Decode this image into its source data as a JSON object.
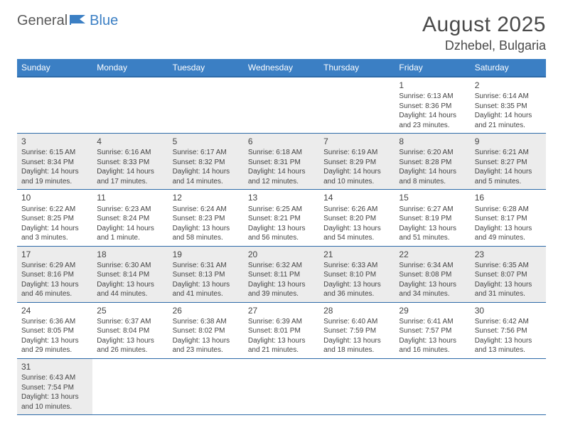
{
  "logo": {
    "part1": "General",
    "part2": "Blue"
  },
  "title": "August 2025",
  "location": "Dzhebel, Bulgaria",
  "header_bg": "#3b7fc4",
  "header_border": "#2d6aa8",
  "alt_row_bg": "#ececec",
  "text_color": "#444444",
  "dayHeaders": [
    "Sunday",
    "Monday",
    "Tuesday",
    "Wednesday",
    "Thursday",
    "Friday",
    "Saturday"
  ],
  "weeks": [
    [
      null,
      null,
      null,
      null,
      null,
      {
        "n": "1",
        "sr": "Sunrise: 6:13 AM",
        "ss": "Sunset: 8:36 PM",
        "dl1": "Daylight: 14 hours",
        "dl2": "and 23 minutes."
      },
      {
        "n": "2",
        "sr": "Sunrise: 6:14 AM",
        "ss": "Sunset: 8:35 PM",
        "dl1": "Daylight: 14 hours",
        "dl2": "and 21 minutes."
      }
    ],
    [
      {
        "n": "3",
        "sr": "Sunrise: 6:15 AM",
        "ss": "Sunset: 8:34 PM",
        "dl1": "Daylight: 14 hours",
        "dl2": "and 19 minutes."
      },
      {
        "n": "4",
        "sr": "Sunrise: 6:16 AM",
        "ss": "Sunset: 8:33 PM",
        "dl1": "Daylight: 14 hours",
        "dl2": "and 17 minutes."
      },
      {
        "n": "5",
        "sr": "Sunrise: 6:17 AM",
        "ss": "Sunset: 8:32 PM",
        "dl1": "Daylight: 14 hours",
        "dl2": "and 14 minutes."
      },
      {
        "n": "6",
        "sr": "Sunrise: 6:18 AM",
        "ss": "Sunset: 8:31 PM",
        "dl1": "Daylight: 14 hours",
        "dl2": "and 12 minutes."
      },
      {
        "n": "7",
        "sr": "Sunrise: 6:19 AM",
        "ss": "Sunset: 8:29 PM",
        "dl1": "Daylight: 14 hours",
        "dl2": "and 10 minutes."
      },
      {
        "n": "8",
        "sr": "Sunrise: 6:20 AM",
        "ss": "Sunset: 8:28 PM",
        "dl1": "Daylight: 14 hours",
        "dl2": "and 8 minutes."
      },
      {
        "n": "9",
        "sr": "Sunrise: 6:21 AM",
        "ss": "Sunset: 8:27 PM",
        "dl1": "Daylight: 14 hours",
        "dl2": "and 5 minutes."
      }
    ],
    [
      {
        "n": "10",
        "sr": "Sunrise: 6:22 AM",
        "ss": "Sunset: 8:25 PM",
        "dl1": "Daylight: 14 hours",
        "dl2": "and 3 minutes."
      },
      {
        "n": "11",
        "sr": "Sunrise: 6:23 AM",
        "ss": "Sunset: 8:24 PM",
        "dl1": "Daylight: 14 hours",
        "dl2": "and 1 minute."
      },
      {
        "n": "12",
        "sr": "Sunrise: 6:24 AM",
        "ss": "Sunset: 8:23 PM",
        "dl1": "Daylight: 13 hours",
        "dl2": "and 58 minutes."
      },
      {
        "n": "13",
        "sr": "Sunrise: 6:25 AM",
        "ss": "Sunset: 8:21 PM",
        "dl1": "Daylight: 13 hours",
        "dl2": "and 56 minutes."
      },
      {
        "n": "14",
        "sr": "Sunrise: 6:26 AM",
        "ss": "Sunset: 8:20 PM",
        "dl1": "Daylight: 13 hours",
        "dl2": "and 54 minutes."
      },
      {
        "n": "15",
        "sr": "Sunrise: 6:27 AM",
        "ss": "Sunset: 8:19 PM",
        "dl1": "Daylight: 13 hours",
        "dl2": "and 51 minutes."
      },
      {
        "n": "16",
        "sr": "Sunrise: 6:28 AM",
        "ss": "Sunset: 8:17 PM",
        "dl1": "Daylight: 13 hours",
        "dl2": "and 49 minutes."
      }
    ],
    [
      {
        "n": "17",
        "sr": "Sunrise: 6:29 AM",
        "ss": "Sunset: 8:16 PM",
        "dl1": "Daylight: 13 hours",
        "dl2": "and 46 minutes."
      },
      {
        "n": "18",
        "sr": "Sunrise: 6:30 AM",
        "ss": "Sunset: 8:14 PM",
        "dl1": "Daylight: 13 hours",
        "dl2": "and 44 minutes."
      },
      {
        "n": "19",
        "sr": "Sunrise: 6:31 AM",
        "ss": "Sunset: 8:13 PM",
        "dl1": "Daylight: 13 hours",
        "dl2": "and 41 minutes."
      },
      {
        "n": "20",
        "sr": "Sunrise: 6:32 AM",
        "ss": "Sunset: 8:11 PM",
        "dl1": "Daylight: 13 hours",
        "dl2": "and 39 minutes."
      },
      {
        "n": "21",
        "sr": "Sunrise: 6:33 AM",
        "ss": "Sunset: 8:10 PM",
        "dl1": "Daylight: 13 hours",
        "dl2": "and 36 minutes."
      },
      {
        "n": "22",
        "sr": "Sunrise: 6:34 AM",
        "ss": "Sunset: 8:08 PM",
        "dl1": "Daylight: 13 hours",
        "dl2": "and 34 minutes."
      },
      {
        "n": "23",
        "sr": "Sunrise: 6:35 AM",
        "ss": "Sunset: 8:07 PM",
        "dl1": "Daylight: 13 hours",
        "dl2": "and 31 minutes."
      }
    ],
    [
      {
        "n": "24",
        "sr": "Sunrise: 6:36 AM",
        "ss": "Sunset: 8:05 PM",
        "dl1": "Daylight: 13 hours",
        "dl2": "and 29 minutes."
      },
      {
        "n": "25",
        "sr": "Sunrise: 6:37 AM",
        "ss": "Sunset: 8:04 PM",
        "dl1": "Daylight: 13 hours",
        "dl2": "and 26 minutes."
      },
      {
        "n": "26",
        "sr": "Sunrise: 6:38 AM",
        "ss": "Sunset: 8:02 PM",
        "dl1": "Daylight: 13 hours",
        "dl2": "and 23 minutes."
      },
      {
        "n": "27",
        "sr": "Sunrise: 6:39 AM",
        "ss": "Sunset: 8:01 PM",
        "dl1": "Daylight: 13 hours",
        "dl2": "and 21 minutes."
      },
      {
        "n": "28",
        "sr": "Sunrise: 6:40 AM",
        "ss": "Sunset: 7:59 PM",
        "dl1": "Daylight: 13 hours",
        "dl2": "and 18 minutes."
      },
      {
        "n": "29",
        "sr": "Sunrise: 6:41 AM",
        "ss": "Sunset: 7:57 PM",
        "dl1": "Daylight: 13 hours",
        "dl2": "and 16 minutes."
      },
      {
        "n": "30",
        "sr": "Sunrise: 6:42 AM",
        "ss": "Sunset: 7:56 PM",
        "dl1": "Daylight: 13 hours",
        "dl2": "and 13 minutes."
      }
    ],
    [
      {
        "n": "31",
        "sr": "Sunrise: 6:43 AM",
        "ss": "Sunset: 7:54 PM",
        "dl1": "Daylight: 13 hours",
        "dl2": "and 10 minutes."
      },
      null,
      null,
      null,
      null,
      null,
      null
    ]
  ]
}
